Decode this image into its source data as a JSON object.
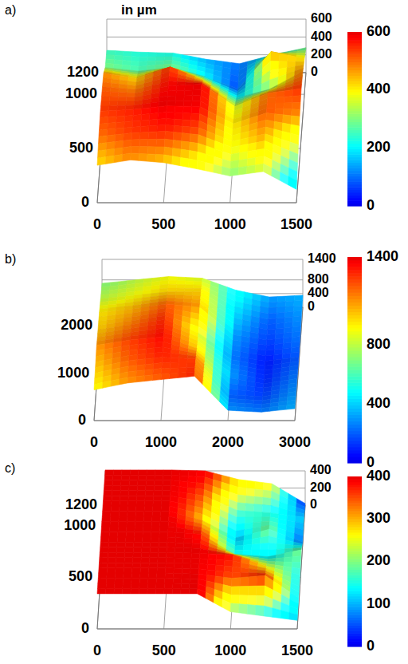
{
  "chart_data": [
    {
      "type": "surface",
      "panel": "a)",
      "annotation": "in µm",
      "x": [
        0,
        250,
        500,
        750,
        1000,
        1250,
        1500
      ],
      "y": [
        0,
        200,
        400,
        600,
        800,
        1000,
        1200
      ],
      "z": [
        [
          420,
          480,
          450,
          380,
          300,
          350,
          150
        ],
        [
          500,
          540,
          560,
          520,
          380,
          450,
          300
        ],
        [
          540,
          560,
          600,
          590,
          400,
          520,
          480
        ],
        [
          520,
          500,
          580,
          600,
          350,
          500,
          550
        ],
        [
          480,
          420,
          550,
          400,
          200,
          300,
          500
        ],
        [
          300,
          260,
          300,
          200,
          60,
          480,
          400
        ],
        [
          250,
          230,
          220,
          150,
          100,
          200,
          280
        ]
      ],
      "xlim": [
        0,
        1500
      ],
      "ylim": [
        0,
        1200
      ],
      "zlim": [
        0,
        600
      ],
      "xticks": [
        0,
        500,
        1000,
        1500
      ],
      "yticks": [
        0,
        500,
        1000,
        1200
      ],
      "zticks": [
        0,
        200,
        400,
        600
      ],
      "colorbar": {
        "range": [
          0,
          600
        ],
        "ticks": [
          0,
          200,
          400,
          600
        ]
      },
      "grid": true
    },
    {
      "type": "surface",
      "panel": "b)",
      "x": [
        0,
        500,
        1000,
        1500,
        2000,
        2500,
        3000
      ],
      "y": [
        0,
        400,
        800,
        1200,
        1600,
        2000,
        2400
      ],
      "z": [
        [
          900,
          1100,
          1200,
          1300,
          300,
          250,
          350
        ],
        [
          1000,
          1200,
          1300,
          1250,
          200,
          150,
          300
        ],
        [
          1100,
          1250,
          1350,
          1000,
          300,
          100,
          250
        ],
        [
          1000,
          1150,
          1300,
          900,
          250,
          80,
          200
        ],
        [
          950,
          1050,
          1200,
          1100,
          300,
          150,
          250
        ],
        [
          800,
          900,
          1000,
          1000,
          400,
          200,
          300
        ],
        [
          700,
          800,
          900,
          850,
          500,
          300,
          350
        ]
      ],
      "xlim": [
        0,
        3000
      ],
      "ylim": [
        0,
        2400
      ],
      "zlim": [
        0,
        1400
      ],
      "xticks": [
        0,
        1000,
        2000,
        3000
      ],
      "yticks": [
        0,
        1000,
        2000
      ],
      "zticks": [
        0,
        400,
        800,
        1400
      ],
      "colorbar": {
        "range": [
          0,
          1400
        ],
        "ticks": [
          0,
          400,
          800,
          1400
        ]
      },
      "grid": true
    },
    {
      "type": "surface",
      "panel": "c)",
      "x": [
        0,
        250,
        500,
        750,
        1000,
        1250,
        1500
      ],
      "y": [
        0,
        200,
        400,
        600,
        800,
        1000,
        1200
      ],
      "z": [
        [
          410,
          410,
          410,
          410,
          200,
          150,
          100
        ],
        [
          410,
          410,
          410,
          400,
          350,
          380,
          120
        ],
        [
          410,
          410,
          410,
          400,
          380,
          250,
          150
        ],
        [
          410,
          410,
          410,
          380,
          150,
          120,
          200
        ],
        [
          410,
          410,
          410,
          300,
          100,
          200,
          50
        ],
        [
          410,
          410,
          410,
          350,
          180,
          150,
          100
        ],
        [
          410,
          410,
          410,
          400,
          300,
          250,
          20
        ]
      ],
      "xlim": [
        0,
        1500
      ],
      "ylim": [
        0,
        1200
      ],
      "zlim": [
        0,
        400
      ],
      "xticks": [
        0,
        500,
        1000,
        1500
      ],
      "yticks": [
        0,
        500,
        1000,
        1200
      ],
      "zticks": [
        0,
        200,
        400
      ],
      "colorbar": {
        "range": [
          0,
          400
        ],
        "ticks": [
          0,
          100,
          200,
          300,
          400
        ]
      },
      "grid": true
    }
  ]
}
